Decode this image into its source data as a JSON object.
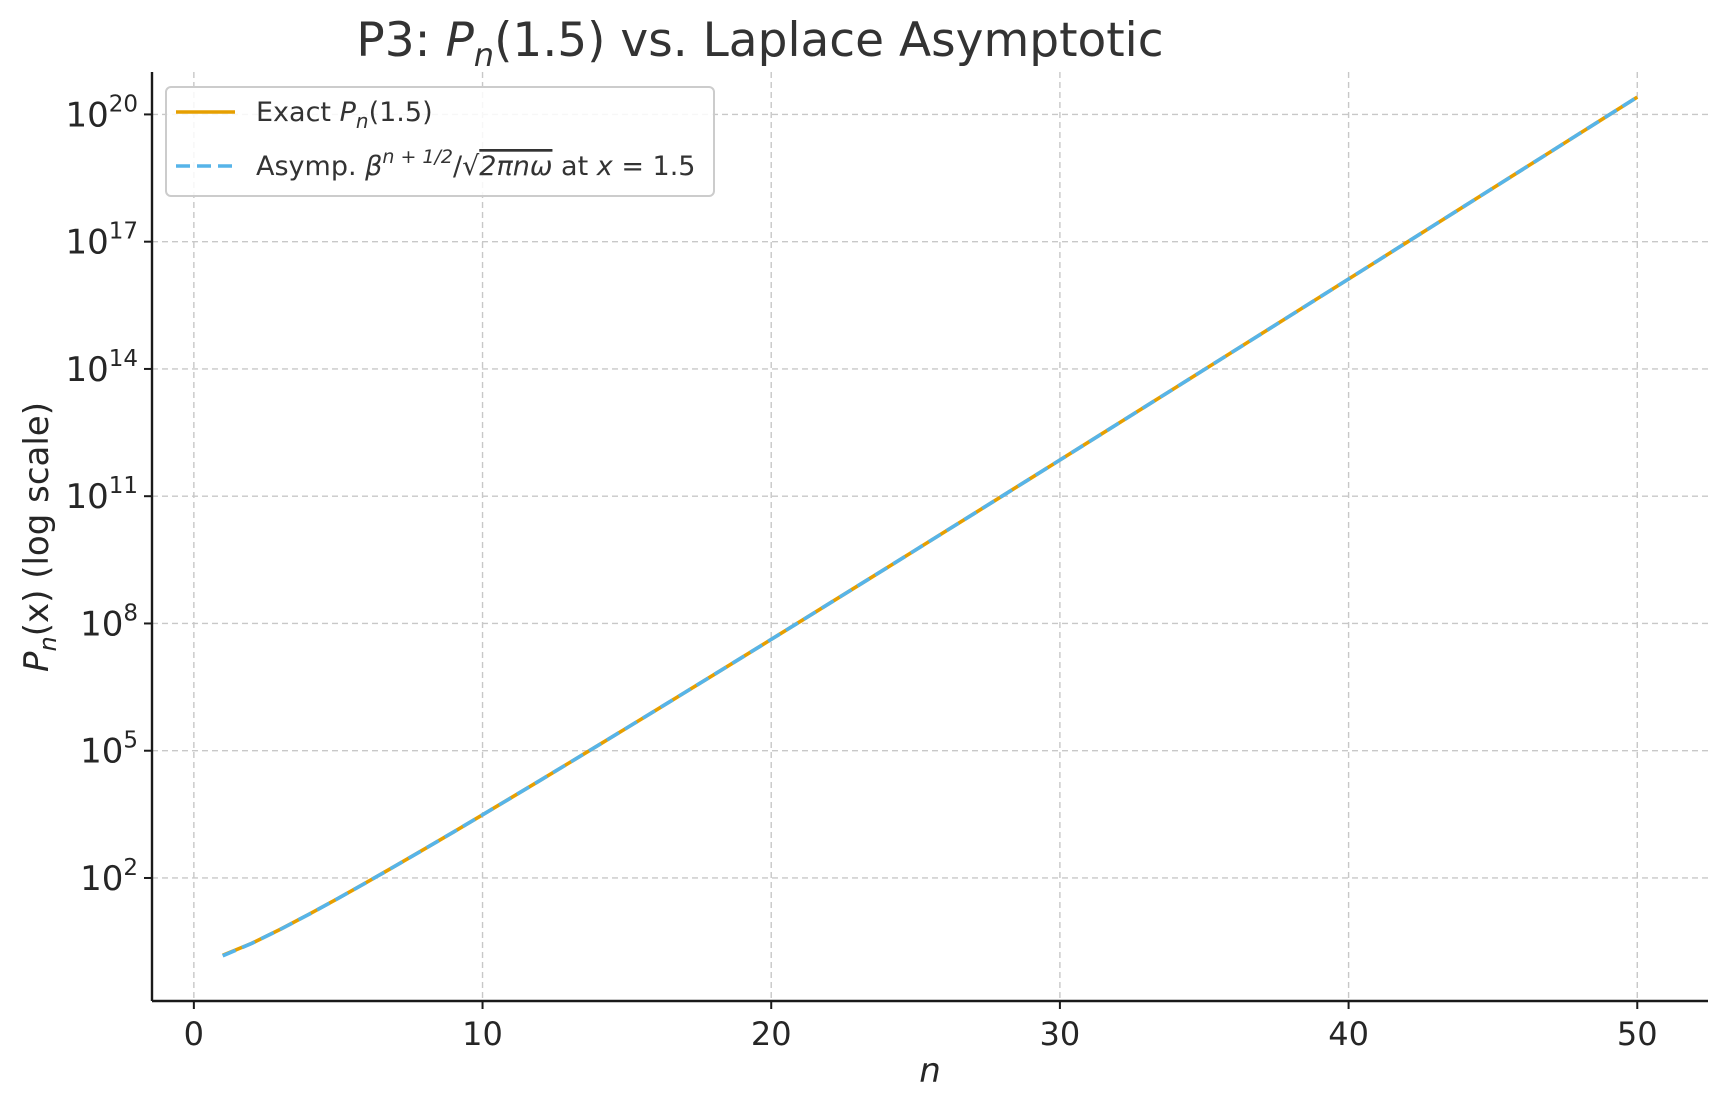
{
  "chart_data": {
    "type": "line",
    "title": {
      "prefix": "P3: ",
      "symbol": "P",
      "subscript": "n",
      "suffix": "(1.5) vs. Laplace Asymptotic"
    },
    "xlabel": "n",
    "ylabel": {
      "symbol": "P",
      "subscript": "n",
      "suffix": "(x) (log scale)"
    },
    "xlim": [
      -1.45,
      52.45
    ],
    "ylim_log10": [
      -0.9,
      21.0
    ],
    "y_scale": "log",
    "grid": true,
    "legend_position": "top-left",
    "x_ticks": [
      {
        "value": 0,
        "label": "0"
      },
      {
        "value": 10,
        "label": "10"
      },
      {
        "value": 20,
        "label": "20"
      },
      {
        "value": 30,
        "label": "30"
      },
      {
        "value": 40,
        "label": "40"
      },
      {
        "value": 50,
        "label": "50"
      }
    ],
    "y_ticks": [
      {
        "exp10": 2,
        "base": "10",
        "sup": "2"
      },
      {
        "exp10": 5,
        "base": "10",
        "sup": "5"
      },
      {
        "exp10": 8,
        "base": "10",
        "sup": "8"
      },
      {
        "exp10": 11,
        "base": "10",
        "sup": "11"
      },
      {
        "exp10": 14,
        "base": "10",
        "sup": "14"
      },
      {
        "exp10": 17,
        "base": "10",
        "sup": "17"
      },
      {
        "exp10": 20,
        "base": "10",
        "sup": "20"
      }
    ],
    "series": [
      {
        "name": "Exact Pn(1.5)",
        "legend_parts": [
          {
            "t": "Exact "
          },
          {
            "t": "P",
            "italic": true
          },
          {
            "t": "n",
            "italic": true,
            "sub": true
          },
          {
            "t": "(1.5)"
          }
        ],
        "color": "#E69F00",
        "style": "solid",
        "x": [
          1,
          2,
          3,
          4,
          5,
          6,
          7,
          8,
          9,
          10,
          11,
          12,
          13,
          14,
          15,
          16,
          17,
          18,
          19,
          20,
          21,
          22,
          23,
          24,
          25,
          26,
          27,
          28,
          29,
          30,
          31,
          32,
          33,
          34,
          35,
          36,
          37,
          38,
          39,
          40,
          41,
          42,
          43,
          44,
          45,
          46,
          47,
          48,
          49,
          50
        ],
        "y": [
          1.5,
          2.875,
          6.1875,
          14.0859,
          33.1758,
          79.9795,
          196.0768,
          486.8092,
          1220.8554,
          3086.3281,
          7853.6453,
          20095.2773,
          51658.8,
          133357.3,
          345517.9,
          898147.4,
          2341457,
          6120665,
          16038340,
          42118390,
          110827700,
          292139000,
          771250700,
          2039000000,
          5397880000,
          14306900000,
          37960700000,
          100824000000,
          268048000000,
          713268000000,
          1899580000000,
          5063060000000,
          13504800000000,
          36045300000000,
          96269400000000,
          257266000000000,
          687891000000000,
          1840320000000000,
          4926010000000000,
          13191700000000000,
          35343200000000000,
          94735300000000000,
          254038000000000000,
          681500000000000000,
          1828970000000000000,
          4910400000000000000,
          13188700000000000000,
          35435700000000000000,
          95246400000000000000,
          256118000000000000000
        ]
      },
      {
        "name": "Asymp. β^(n+1/2)/√(2πnω) at x = 1.5",
        "legend_parts": [
          {
            "t": "Asymp. "
          },
          {
            "t": "β",
            "italic": true
          },
          {
            "t": "n + 1/2",
            "italic": true,
            "sup": true
          },
          {
            "t": "/√"
          },
          {
            "t": "2πnω",
            "italic": true,
            "overline": true
          },
          {
            "t": " at "
          },
          {
            "t": "x",
            "italic": true
          },
          {
            "t": " = 1.5"
          }
        ],
        "color": "#56B4E9",
        "style": "dashed",
        "x": [
          1,
          2,
          3,
          4,
          5,
          6,
          7,
          8,
          9,
          10,
          11,
          12,
          13,
          14,
          15,
          16,
          17,
          18,
          19,
          20,
          21,
          22,
          23,
          24,
          25,
          26,
          27,
          28,
          29,
          30,
          31,
          32,
          33,
          34,
          35,
          36,
          37,
          38,
          39,
          40,
          41,
          42,
          43,
          44,
          45,
          46,
          47,
          48,
          49,
          50
        ],
        "y": [
          1.465,
          2.86,
          6.17,
          14.06,
          33.13,
          79.9,
          195.9,
          486.5,
          1220.3,
          3085.3,
          7851.8,
          20091.9,
          51652.9,
          133347.1,
          345500.1,
          898116.6,
          2341403,
          6120571,
          16038170,
          42118090,
          110827200,
          292138100,
          771249200,
          2038998000,
          5397876000,
          14306890000,
          37960690000,
          100823980000,
          268047950000,
          713267900000,
          1899579800000,
          5063059600000,
          13504799000000,
          36045298000000,
          96269396000000,
          257265990000000,
          687890980000000,
          1840319900000000,
          4926009800000000,
          13191699000000000,
          35343198000000000,
          94735295000000000,
          254037990000000000,
          681499970000000000,
          1828969900000000000,
          4910399800000000000,
          13188699000000000000,
          35435699000000000000,
          95246397000000000000,
          256117990000000000000
        ]
      }
    ]
  }
}
